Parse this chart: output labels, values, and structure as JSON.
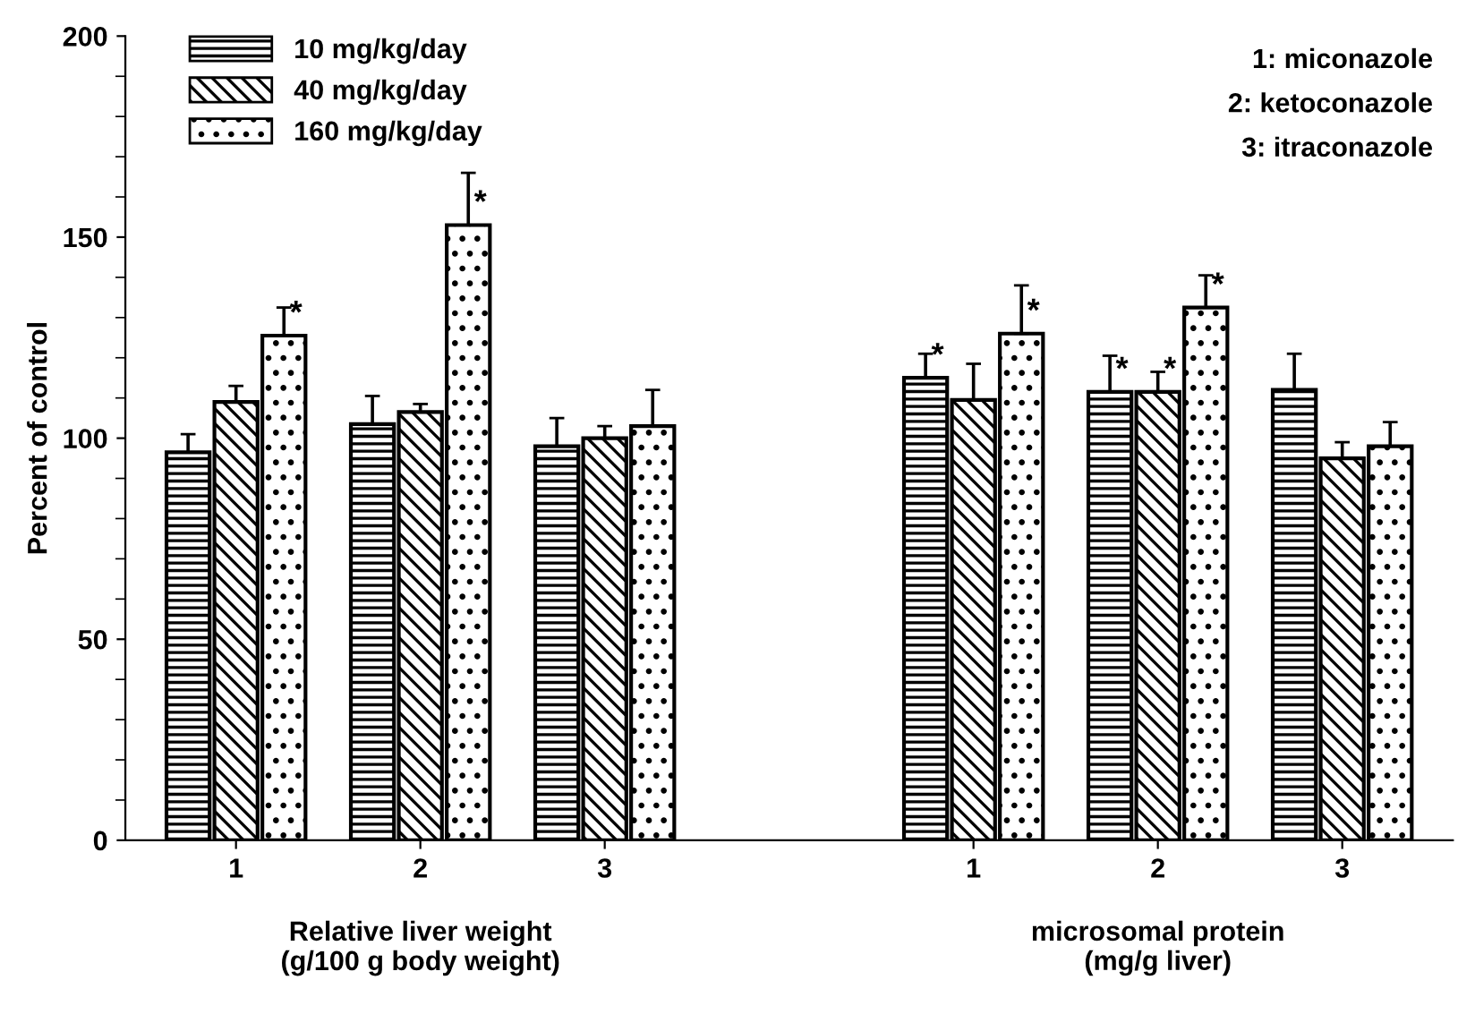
{
  "chart_data": {
    "type": "bar",
    "ylabel": "Percent of control",
    "categories": [
      "1",
      "2",
      "3",
      null,
      "1",
      "2",
      "3"
    ],
    "series": [
      {
        "name": "10 mg/kg/day",
        "color": "#000000",
        "values": [
          96.5,
          103.5,
          98,
          null,
          115,
          111.5,
          112
        ],
        "errors": [
          4.5,
          7,
          7,
          null,
          6,
          9,
          9
        ],
        "value_labels": [
          null,
          null,
          null,
          null,
          "*",
          "*",
          null
        ]
      },
      {
        "name": "40 mg/kg/day",
        "color": "#000000",
        "values": [
          109,
          106.5,
          100,
          null,
          109.5,
          111.5,
          95
        ],
        "errors": [
          4,
          2,
          3,
          null,
          9,
          5,
          4
        ],
        "value_labels": [
          null,
          null,
          null,
          null,
          null,
          "*",
          null
        ]
      },
      {
        "name": "160 mg/kg/day",
        "color": "#000000",
        "values": [
          125.5,
          153,
          103,
          null,
          126,
          132.5,
          98
        ],
        "errors": [
          7,
          13,
          9,
          null,
          12,
          8,
          6
        ],
        "value_labels": [
          "*",
          "*",
          null,
          null,
          "*",
          "*",
          null
        ]
      }
    ],
    "ylim": [
      0,
      200
    ],
    "yticks": [
      0,
      50,
      100,
      150,
      200
    ],
    "grid": false,
    "legend": "top left",
    "annotations": [
      "1: miconazole",
      "2: ketoconazole",
      "3: itraconazole",
      "Relative liver weight\n(g/100 g body weight)",
      "microsomal protein\n(mg/g liver)"
    ]
  }
}
